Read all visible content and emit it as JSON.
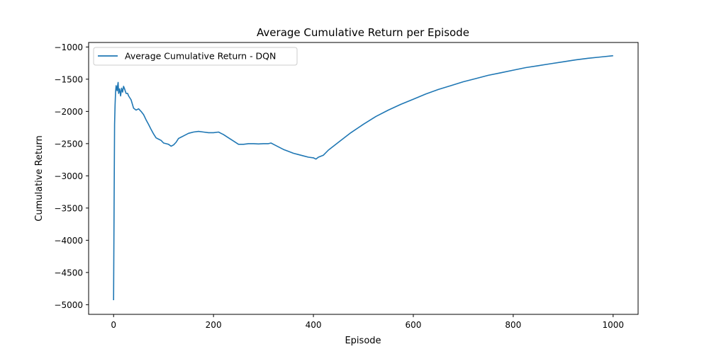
{
  "chart_data": {
    "type": "line",
    "title": "Average Cumulative Return per Episode",
    "xlabel": "Episode",
    "ylabel": "Cumulative Return",
    "xlim": [
      -50,
      1050
    ],
    "ylim": [
      -5150,
      -930
    ],
    "xticks": [
      0,
      200,
      400,
      600,
      800,
      1000
    ],
    "xtick_labels": [
      "0",
      "200",
      "400",
      "600",
      "800",
      "1000"
    ],
    "yticks": [
      -1000,
      -1500,
      -2000,
      -2500,
      -3000,
      -3500,
      -4000,
      -4500,
      -5000
    ],
    "ytick_labels": [
      "−1000",
      "−1500",
      "−2000",
      "−2500",
      "−3000",
      "−3500",
      "−4000",
      "−4500",
      "−5000"
    ],
    "grid": false,
    "legend_position": "upper left",
    "series": [
      {
        "name": "Average Cumulative Return - DQN",
        "color": "#1f77b4",
        "x": [
          0,
          1,
          2,
          3,
          4,
          5,
          6,
          7,
          8,
          9,
          10,
          12,
          14,
          16,
          18,
          20,
          22,
          25,
          28,
          30,
          35,
          40,
          45,
          50,
          55,
          60,
          65,
          70,
          75,
          80,
          85,
          90,
          95,
          100,
          105,
          110,
          115,
          120,
          125,
          130,
          140,
          150,
          160,
          170,
          180,
          190,
          200,
          210,
          215,
          220,
          230,
          240,
          250,
          260,
          270,
          280,
          290,
          300,
          310,
          315,
          320,
          330,
          340,
          350,
          360,
          370,
          380,
          390,
          400,
          405,
          410,
          420,
          430,
          450,
          475,
          500,
          525,
          550,
          575,
          600,
          625,
          650,
          675,
          700,
          725,
          750,
          775,
          800,
          825,
          850,
          875,
          900,
          925,
          950,
          975,
          1000
        ],
        "y": [
          -4930,
          -3500,
          -2200,
          -1900,
          -1700,
          -1600,
          -1640,
          -1680,
          -1600,
          -1550,
          -1720,
          -1650,
          -1760,
          -1640,
          -1700,
          -1610,
          -1650,
          -1720,
          -1720,
          -1760,
          -1820,
          -1950,
          -1980,
          -1960,
          -2000,
          -2050,
          -2130,
          -2200,
          -2280,
          -2350,
          -2410,
          -2430,
          -2450,
          -2490,
          -2500,
          -2510,
          -2540,
          -2520,
          -2480,
          -2420,
          -2380,
          -2340,
          -2320,
          -2310,
          -2320,
          -2330,
          -2330,
          -2320,
          -2340,
          -2360,
          -2410,
          -2460,
          -2510,
          -2510,
          -2500,
          -2500,
          -2505,
          -2500,
          -2500,
          -2490,
          -2510,
          -2550,
          -2590,
          -2620,
          -2650,
          -2670,
          -2690,
          -2710,
          -2720,
          -2740,
          -2710,
          -2680,
          -2600,
          -2480,
          -2330,
          -2200,
          -2080,
          -1980,
          -1890,
          -1810,
          -1730,
          -1660,
          -1600,
          -1540,
          -1490,
          -1440,
          -1400,
          -1360,
          -1320,
          -1290,
          -1260,
          -1230,
          -1200,
          -1175,
          -1155,
          -1135
        ]
      }
    ]
  }
}
